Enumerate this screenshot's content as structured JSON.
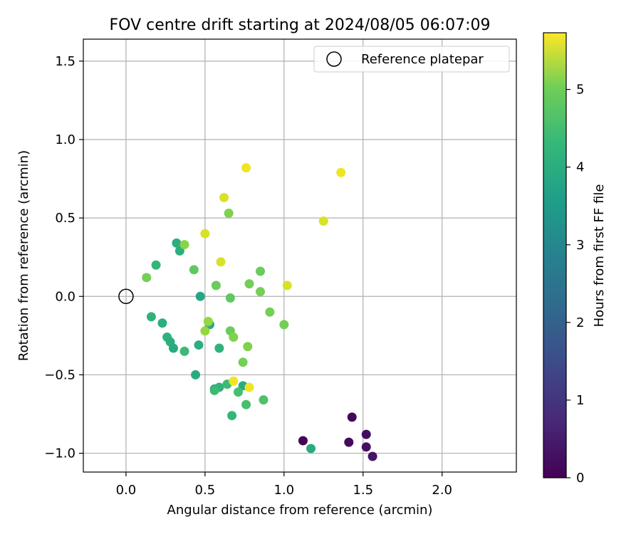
{
  "chart_data": {
    "type": "scatter",
    "title": "FOV centre drift starting at 2024/08/05 06:07:09",
    "xlabel": "Angular distance from reference (arcmin)",
    "ylabel": "Rotation from reference (arcmin)",
    "xlim": [
      -0.27,
      2.47
    ],
    "ylim": [
      -1.12,
      1.64
    ],
    "xticks": [
      0.0,
      0.5,
      1.0,
      1.5,
      2.0
    ],
    "xtick_labels": [
      "0.0",
      "0.5",
      "1.0",
      "1.5",
      "2.0"
    ],
    "yticks": [
      -1.0,
      -0.5,
      0.0,
      0.5,
      1.0,
      1.5
    ],
    "ytick_labels": [
      "−1.0",
      "−0.5",
      "0.0",
      "0.5",
      "1.0",
      "1.5"
    ],
    "grid": true,
    "legend": {
      "position": "top-right",
      "entries": [
        "Reference platepar"
      ]
    },
    "reference_point": {
      "x": 0.0,
      "y": 0.0,
      "label": "Reference platepar"
    },
    "colorbar": {
      "label": "Hours from first FF file",
      "colormap": "viridis",
      "range": [
        0,
        5.73
      ],
      "ticks": [
        0,
        1,
        2,
        3,
        4,
        5
      ],
      "tick_labels": [
        "0",
        "1",
        "2",
        "3",
        "4",
        "5"
      ]
    },
    "points": [
      {
        "x": 1.12,
        "y": -0.92,
        "c": 0.05
      },
      {
        "x": 1.43,
        "y": -0.77,
        "c": 0.1
      },
      {
        "x": 1.41,
        "y": -0.93,
        "c": 0.15
      },
      {
        "x": 1.52,
        "y": -0.88,
        "c": 0.2
      },
      {
        "x": 1.52,
        "y": -0.96,
        "c": 0.25
      },
      {
        "x": 1.56,
        "y": -1.02,
        "c": 0.3
      },
      {
        "x": 1.17,
        "y": -0.97,
        "c": 3.5
      },
      {
        "x": 0.47,
        "y": 0.0,
        "c": 3.4
      },
      {
        "x": 0.32,
        "y": 0.34,
        "c": 3.6
      },
      {
        "x": 0.34,
        "y": 0.29,
        "c": 3.6
      },
      {
        "x": 0.19,
        "y": 0.2,
        "c": 3.8
      },
      {
        "x": 0.16,
        "y": -0.13,
        "c": 3.7
      },
      {
        "x": 0.23,
        "y": -0.17,
        "c": 3.6
      },
      {
        "x": 0.26,
        "y": -0.26,
        "c": 3.7
      },
      {
        "x": 0.28,
        "y": -0.29,
        "c": 3.6
      },
      {
        "x": 0.3,
        "y": -0.33,
        "c": 3.5
      },
      {
        "x": 0.37,
        "y": -0.35,
        "c": 3.9
      },
      {
        "x": 0.46,
        "y": -0.31,
        "c": 3.6
      },
      {
        "x": 0.44,
        "y": -0.5,
        "c": 3.5
      },
      {
        "x": 0.53,
        "y": -0.18,
        "c": 3.5
      },
      {
        "x": 0.59,
        "y": -0.33,
        "c": 3.7
      },
      {
        "x": 0.56,
        "y": -0.59,
        "c": 3.6
      },
      {
        "x": 0.59,
        "y": -0.58,
        "c": 3.7
      },
      {
        "x": 0.56,
        "y": -0.6,
        "c": 3.9
      },
      {
        "x": 0.64,
        "y": -0.56,
        "c": 3.9
      },
      {
        "x": 0.74,
        "y": -0.57,
        "c": 3.5
      },
      {
        "x": 0.67,
        "y": -0.76,
        "c": 3.8
      },
      {
        "x": 0.71,
        "y": -0.61,
        "c": 4.0
      },
      {
        "x": 0.76,
        "y": -0.69,
        "c": 4.0
      },
      {
        "x": 0.87,
        "y": -0.66,
        "c": 4.1
      },
      {
        "x": 0.65,
        "y": 0.53,
        "c": 4.6
      },
      {
        "x": 0.37,
        "y": 0.33,
        "c": 4.7
      },
      {
        "x": 0.13,
        "y": 0.12,
        "c": 4.5
      },
      {
        "x": 0.43,
        "y": 0.17,
        "c": 4.3
      },
      {
        "x": 0.57,
        "y": 0.07,
        "c": 4.4
      },
      {
        "x": 0.66,
        "y": -0.01,
        "c": 4.3
      },
      {
        "x": 0.78,
        "y": 0.08,
        "c": 4.5
      },
      {
        "x": 0.85,
        "y": 0.16,
        "c": 4.4
      },
      {
        "x": 0.85,
        "y": 0.03,
        "c": 4.5
      },
      {
        "x": 0.91,
        "y": -0.1,
        "c": 4.5
      },
      {
        "x": 1.0,
        "y": -0.18,
        "c": 4.5
      },
      {
        "x": 0.52,
        "y": -0.16,
        "c": 4.8
      },
      {
        "x": 0.5,
        "y": -0.22,
        "c": 4.8
      },
      {
        "x": 0.66,
        "y": -0.22,
        "c": 4.4
      },
      {
        "x": 0.68,
        "y": -0.26,
        "c": 4.6
      },
      {
        "x": 0.77,
        "y": -0.32,
        "c": 4.6
      },
      {
        "x": 0.74,
        "y": -0.42,
        "c": 4.5
      },
      {
        "x": 0.76,
        "y": 0.82,
        "c": 5.6
      },
      {
        "x": 1.36,
        "y": 0.79,
        "c": 5.6
      },
      {
        "x": 0.62,
        "y": 0.63,
        "c": 5.4
      },
      {
        "x": 0.5,
        "y": 0.4,
        "c": 5.4
      },
      {
        "x": 1.25,
        "y": 0.48,
        "c": 5.4
      },
      {
        "x": 0.6,
        "y": 0.22,
        "c": 5.4
      },
      {
        "x": 1.02,
        "y": 0.07,
        "c": 5.4
      },
      {
        "x": 0.68,
        "y": -0.54,
        "c": 5.6
      },
      {
        "x": 0.78,
        "y": -0.58,
        "c": 5.6
      }
    ]
  }
}
